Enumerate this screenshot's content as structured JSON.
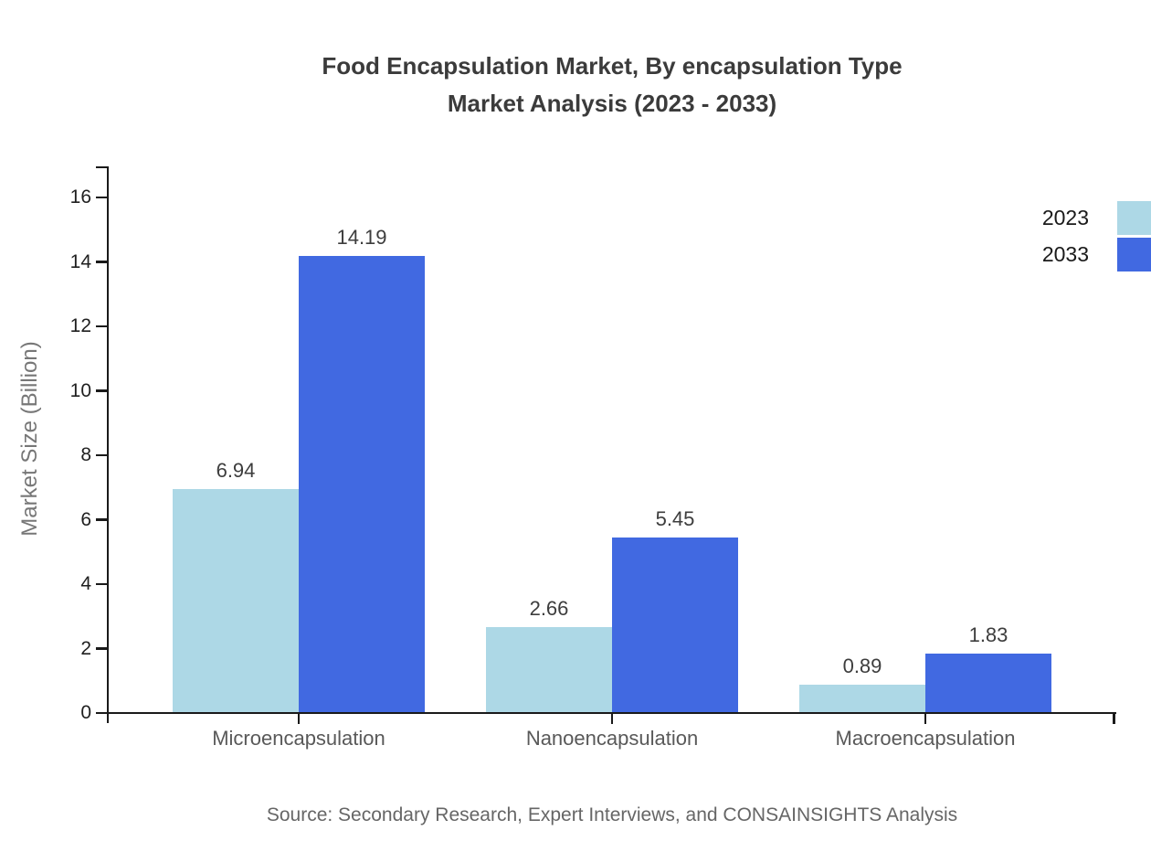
{
  "title": {
    "line1": "Food Encapsulation Market, By encapsulation Type",
    "line2": "Market Analysis (2023 - 2033)"
  },
  "source": {
    "text": "Source: Secondary Research, Expert Interviews, and CONSAINSIGHTS Analysis"
  },
  "chart_data": {
    "type": "bar",
    "title": "Food Encapsulation Market, By encapsulation Type Market Analysis (2023 - 2033)",
    "categories": [
      "Microencapsulation",
      "Nanoencapsulation",
      "Macroencapsulation"
    ],
    "series": [
      {
        "name": "2023",
        "color": "#ADD8E6",
        "values": [
          6.94,
          2.66,
          0.89
        ]
      },
      {
        "name": "2033",
        "color": "#4169E1",
        "values": [
          14.19,
          5.45,
          1.83
        ]
      }
    ],
    "xlabel": "",
    "ylabel": "Market Size (Billion)",
    "ylim": [
      0,
      16
    ],
    "yticks": [
      0,
      2,
      4,
      6,
      8,
      10,
      12,
      14,
      16
    ],
    "grid": false,
    "value_labels": true,
    "legend_position": "top-right"
  },
  "colors": {
    "series_2023": "#ADD8E6",
    "series_2033": "#4169E1",
    "axis": "#1a1a1a",
    "title_text": "#3b3b3b",
    "category_text": "#595959",
    "value_text": "#3d3d3d",
    "tick_text": "#1f1f1f",
    "y_axis_title_text": "#777777",
    "source_text": "#666666",
    "background": "#ffffff"
  }
}
